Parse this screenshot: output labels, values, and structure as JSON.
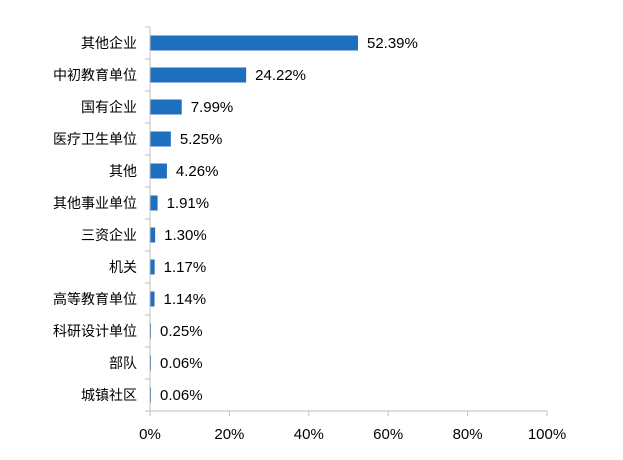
{
  "chart_data": {
    "type": "bar",
    "orientation": "horizontal",
    "title": "",
    "xlabel": "",
    "ylabel": "",
    "categories": [
      "其他企业",
      "中初教育单位",
      "国有企业",
      "医疗卫生单位",
      "其他",
      "其他事业单位",
      "三资企业",
      "机关",
      "高等教育单位",
      "科研设计单位",
      "部队",
      "城镇社区"
    ],
    "values": [
      52.39,
      24.22,
      7.99,
      5.25,
      4.26,
      1.91,
      1.3,
      1.17,
      1.14,
      0.25,
      0.06,
      0.06
    ],
    "value_labels": [
      "52.39%",
      "24.22%",
      "7.99%",
      "5.25%",
      "4.26%",
      "1.91%",
      "1.30%",
      "1.17%",
      "1.14%",
      "0.25%",
      "0.06%",
      "0.06%"
    ],
    "xlim": [
      0,
      100
    ],
    "x_ticks": [
      0,
      20,
      40,
      60,
      80,
      100
    ],
    "x_tick_labels": [
      "0%",
      "20%",
      "40%",
      "60%",
      "80%",
      "100%"
    ],
    "grid": false,
    "legend": "none",
    "bar_color": "#1f6fc0",
    "axis_color": "#bfbfbf"
  }
}
